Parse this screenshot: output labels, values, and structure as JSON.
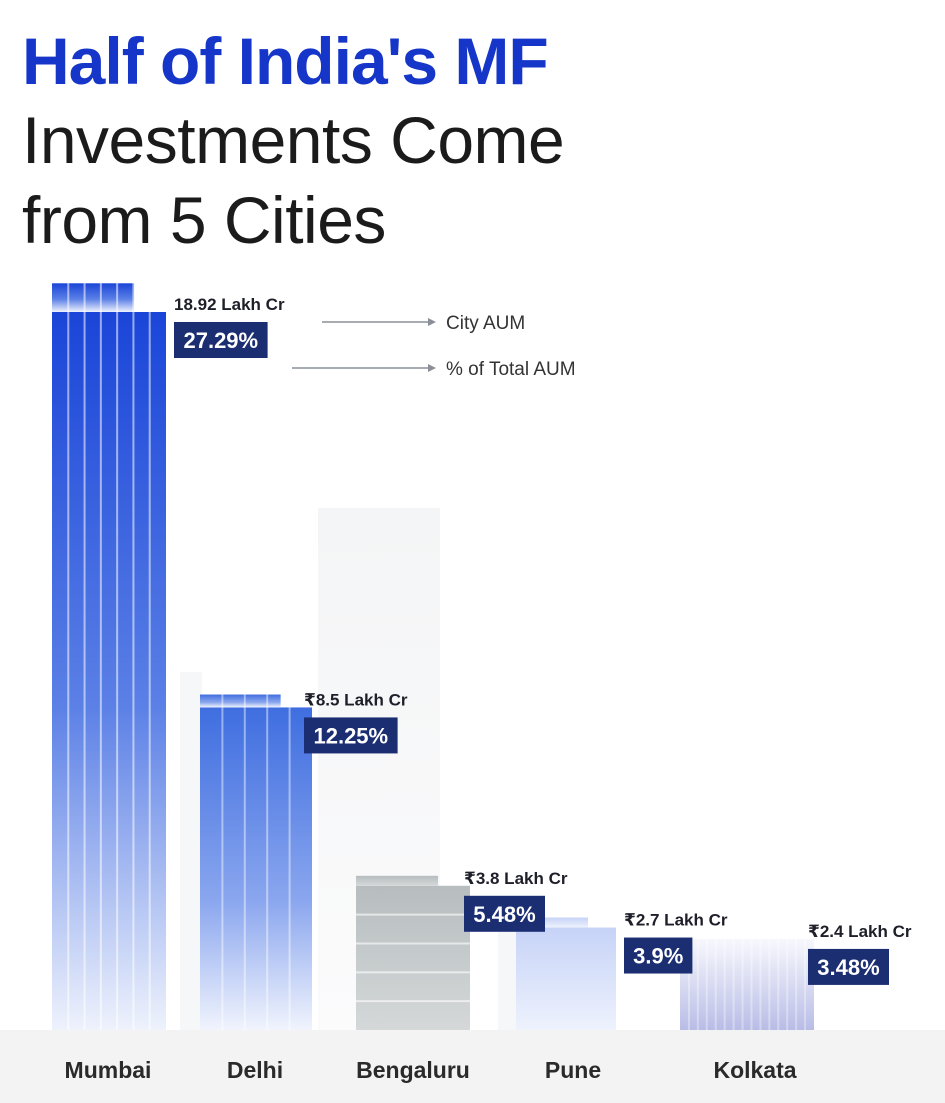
{
  "title": {
    "line1": "Half of India's MF",
    "line2": "Investments Come",
    "line3": "from 5 Cities"
  },
  "legend": {
    "value_label": "City AUM",
    "percent_label": "% of Total AUM"
  },
  "colors": {
    "title_accent": "#1636c9",
    "badge": "#1c2e72",
    "mumbai": "#1a45d8",
    "delhi": "#3f6ee0",
    "bengaluru": "#b7bdbf",
    "pune": "#c6d3f7",
    "kolkata": "#c2c6e8"
  },
  "chart_data": {
    "type": "bar",
    "categories": [
      "Mumbai",
      "Delhi",
      "Bengaluru",
      "Pune",
      "Kolkata"
    ],
    "series": [
      {
        "name": "City AUM",
        "unit": "Lakh Cr",
        "values": [
          18.92,
          8.5,
          3.8,
          2.7,
          2.4
        ]
      },
      {
        "name": "% of Total AUM",
        "unit": "%",
        "values": [
          27.29,
          12.25,
          5.48,
          3.9,
          3.48
        ]
      }
    ],
    "value_labels": [
      "18.92 Lakh Cr",
      "₹8.5 Lakh Cr",
      "₹3.8 Lakh Cr",
      "₹2.7 Lakh Cr",
      "₹2.4 Lakh Cr"
    ],
    "percent_labels": [
      "27.29%",
      "12.25%",
      "5.48%",
      "3.9%",
      "3.48%"
    ],
    "grid": false,
    "legend_position": "top-right"
  }
}
